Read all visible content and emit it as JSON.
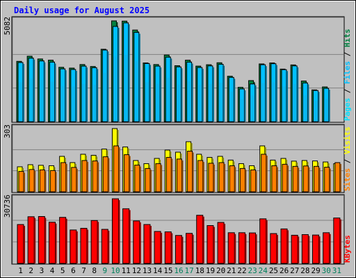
{
  "title": "Daily usage for August 2025",
  "colors": {
    "title": "#0000ff",
    "hits": "#008040",
    "files": "#00c0ff",
    "pages": "#00e0ff",
    "visits": "#ffff00",
    "sites": "#ff8000",
    "kbytes": "#ff0000",
    "weekday_label": "#000000",
    "weekend_label": "#00805c",
    "legend_sep": "#000000",
    "background": "#c0c0c0",
    "plot_background": "#c0c0c0"
  },
  "chart_data": {
    "type": "bar",
    "categories": [
      "1",
      "2",
      "3",
      "4",
      "5",
      "6",
      "7",
      "8",
      "9",
      "10",
      "11",
      "12",
      "13",
      "14",
      "15",
      "16",
      "17",
      "18",
      "19",
      "20",
      "21",
      "22",
      "23",
      "24",
      "25",
      "26",
      "27",
      "28",
      "29",
      "30",
      "31"
    ],
    "weekend_days": [
      "9",
      "10",
      "16",
      "17",
      "23",
      "24",
      "30",
      "31"
    ],
    "panels": [
      {
        "id": "hits_panel",
        "max_label": "5082",
        "ylim": [
          0,
          5082
        ],
        "legend": [
          "Pages",
          "Files",
          "Hits"
        ],
        "series": [
          {
            "name": "Hits",
            "values": [
              3040,
              3300,
              3160,
              3100,
              2740,
              2700,
              2880,
              2780,
              3650,
              5082,
              5070,
              4620,
              2960,
              2880,
              3360,
              2820,
              3100,
              2800,
              2870,
              2970,
              2290,
              1730,
              2070,
              2910,
              2960,
              2650,
              2860,
              2050,
              1600,
              1750,
              0
            ]
          },
          {
            "name": "Files",
            "values": [
              2980,
              3200,
              3060,
              3000,
              2660,
              2630,
              2800,
              2720,
              3610,
              4800,
              4980,
              4500,
              2930,
              2800,
              3250,
              2760,
              3000,
              2730,
              2810,
              2890,
              2230,
              1650,
              1900,
              2870,
              2920,
              2620,
              2810,
              1950,
              1570,
              1680,
              0
            ]
          },
          {
            "name": "Pages",
            "values": [
              1990,
              2180,
              2100,
              2020,
              1790,
              1780,
              1900,
              1850,
              2460,
              3280,
              3370,
              3060,
              1990,
              1910,
              2220,
              1870,
              2040,
              1850,
              1900,
              1960,
              1510,
              1120,
              1320,
              1950,
              1990,
              1780,
              1900,
              1320,
              1060,
              1140,
              0
            ]
          }
        ]
      },
      {
        "id": "visits_panel",
        "max_label": "303",
        "ylim": [
          0,
          303
        ],
        "legend": [
          "Sites",
          "Visits"
        ],
        "series": [
          {
            "name": "Visits",
            "values": [
              120,
              130,
              127,
              125,
              170,
              140,
              180,
              175,
              205,
              303,
              215,
              150,
              135,
              160,
              200,
              190,
              240,
              180,
              165,
              170,
              152,
              135,
              125,
              220,
              152,
              160,
              147,
              150,
              148,
              143,
              135
            ]
          },
          {
            "name": "Sites",
            "values": [
              98,
              107,
              105,
              102,
              140,
              117,
              150,
              148,
              168,
              220,
              178,
              128,
              112,
              135,
              165,
              157,
              195,
              150,
              137,
              140,
              125,
              112,
              105,
              180,
              125,
              132,
              122,
              124,
              122,
              118,
              140
            ]
          }
        ]
      },
      {
        "id": "kbytes_panel",
        "max_label": "30736",
        "ylim": [
          0,
          30736
        ],
        "legend": [
          "KBytes"
        ],
        "series": [
          {
            "name": "KBytes",
            "values": [
              18500,
              22200,
              22300,
              19600,
              21900,
              15900,
              16700,
              20400,
              16200,
              30736,
              26000,
              20200,
              18500,
              15200,
              15000,
              13300,
              14300,
              22900,
              18000,
              19500,
              14600,
              14600,
              14500,
              21200,
              14200,
              16400,
              13400,
              13700,
              13500,
              14600,
              21600
            ]
          }
        ]
      }
    ]
  }
}
